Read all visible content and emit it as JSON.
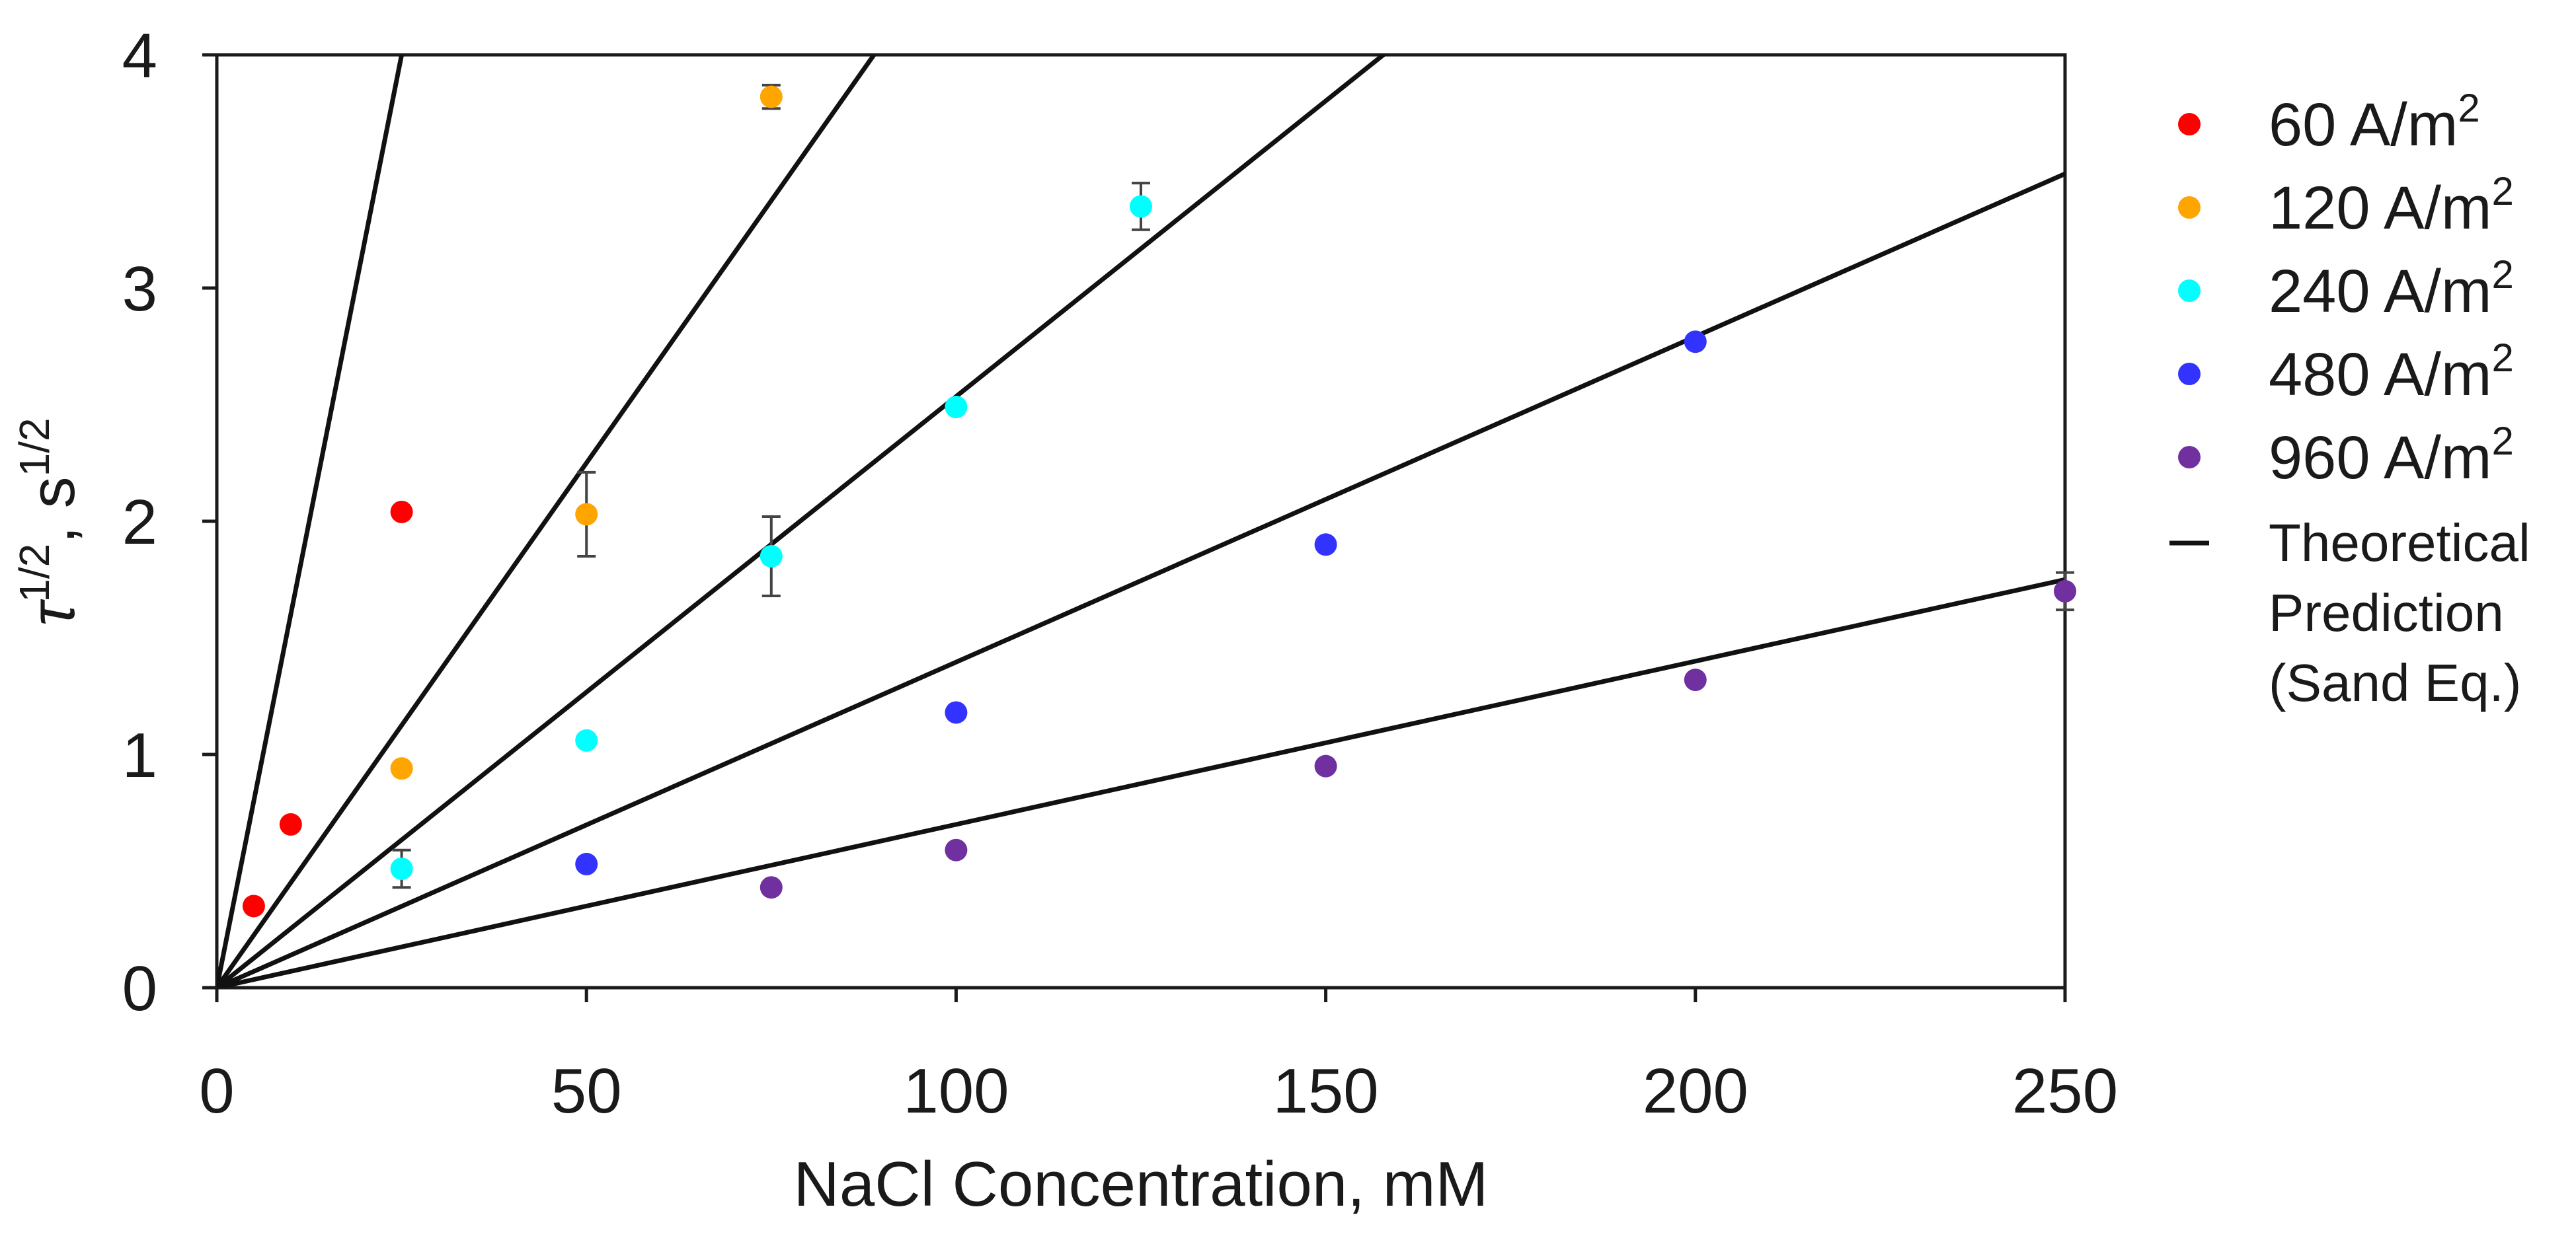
{
  "chart_data": {
    "type": "scatter",
    "xlabel": "NaCl Concentration, mM",
    "ylabel_main": "τ",
    "ylabel_sup1": "1/2",
    "ylabel_mid": ", s",
    "ylabel_sup2": "1/2",
    "xlim": [
      0,
      250
    ],
    "ylim": [
      0,
      4
    ],
    "x_ticks": [
      0,
      50,
      100,
      150,
      200,
      250
    ],
    "x_tick_labels": [
      "0",
      "50",
      "100",
      "150",
      "200",
      "250"
    ],
    "y_ticks": [
      0,
      1,
      2,
      3,
      4
    ],
    "y_tick_labels": [
      "0",
      "1",
      "2",
      "3",
      "4"
    ],
    "grid": false,
    "legend_position": "right",
    "unit_base": "A/m",
    "unit_sup": "2",
    "series": [
      {
        "name": "60",
        "color": "#ff0000",
        "x": [
          5,
          10,
          25
        ],
        "y": [
          0.35,
          0.7,
          2.04
        ],
        "err": [
          0,
          0,
          0
        ]
      },
      {
        "name": "120",
        "color": "#ffa500",
        "x": [
          25,
          50,
          75
        ],
        "y": [
          0.94,
          2.03,
          3.82
        ],
        "err": [
          0,
          0.18,
          0.05
        ]
      },
      {
        "name": "240",
        "color": "#00ffff",
        "x": [
          25,
          50,
          75,
          100,
          125
        ],
        "y": [
          0.51,
          1.06,
          1.85,
          2.49,
          3.35
        ],
        "err": [
          0.08,
          0,
          0.17,
          0,
          0.1
        ]
      },
      {
        "name": "480",
        "color": "#3333ff",
        "x": [
          50,
          100,
          150,
          200
        ],
        "y": [
          0.53,
          1.18,
          1.9,
          2.77
        ],
        "err": [
          0,
          0,
          0,
          0
        ]
      },
      {
        "name": "960",
        "color": "#7030a0",
        "x": [
          75,
          100,
          150,
          200,
          250
        ],
        "y": [
          0.43,
          0.59,
          0.95,
          1.32,
          1.7
        ],
        "err": [
          0,
          0,
          0,
          0,
          0.08
        ]
      }
    ],
    "theory_lines": [
      {
        "name": "60",
        "x_end": 100,
        "y_end": 16
      },
      {
        "name": "120",
        "x_end": 100,
        "y_end": 4.5
      },
      {
        "name": "240",
        "x_end": 200,
        "y_end": 5.07
      },
      {
        "name": "480",
        "x_end": 250,
        "y_end": 3.49
      },
      {
        "name": "960",
        "x_end": 250,
        "y_end": 1.75
      }
    ],
    "theory_legend_lines": [
      "Theoretical",
      "Prediction",
      "(Sand Eq.)"
    ]
  }
}
